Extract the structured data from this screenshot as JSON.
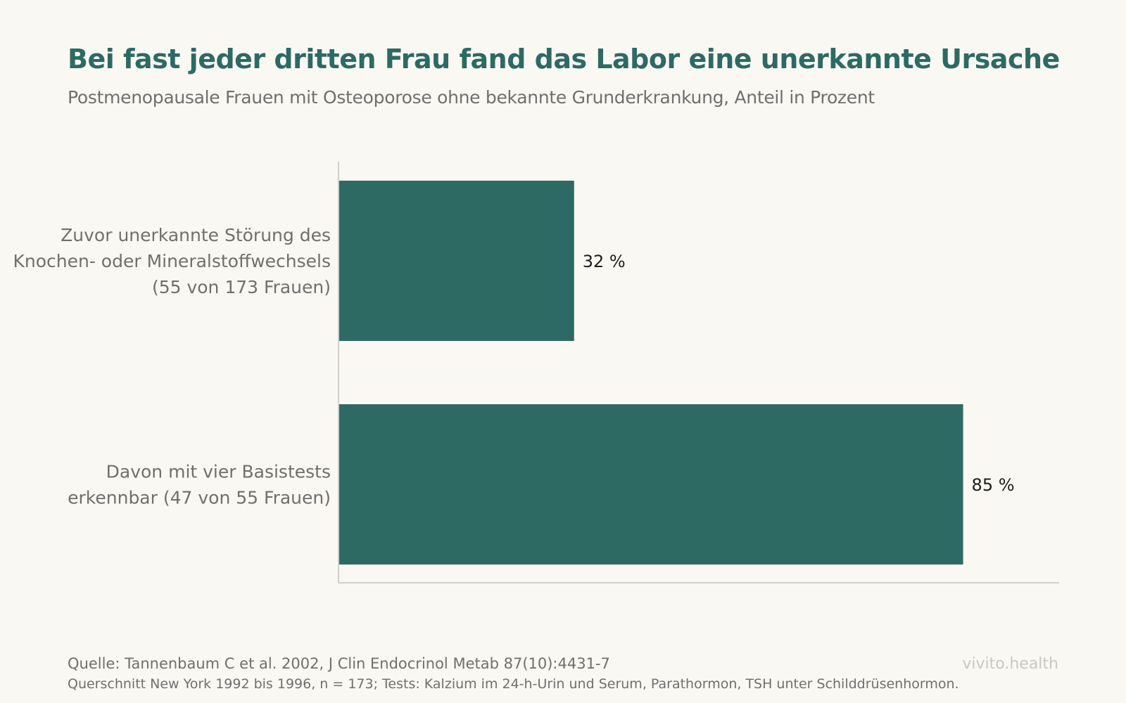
{
  "chart_data": {
    "type": "bar",
    "orientation": "horizontal",
    "title": "Bei fast jeder dritten Frau fand das Labor eine unerkannte Ursache",
    "subtitle": "Postmenopausale Frauen mit Osteoporose ohne bekannte Grunderkrankung, Anteil in Prozent",
    "categories": [
      [
        "Zuvor unerkannte Störung des",
        "Knochen- oder Mineralstoffwechsels",
        "(55 von 173 Frauen)"
      ],
      [
        "Davon mit vier Basistests",
        "erkennbar (47 von 55 Frauen)"
      ]
    ],
    "values": [
      32,
      85
    ],
    "data_labels": [
      "32 %",
      "85 %"
    ],
    "xlim": [
      0,
      100
    ],
    "grid": false,
    "legend": "none",
    "bar_color": "#2d6a64"
  },
  "footer": {
    "source": "Quelle: Tannenbaum C et al. 2002, J Clin Endocrinol Metab 87(10):4431-7",
    "note": "Querschnitt New York 1992 bis 1996, n = 173; Tests: Kalzium im 24-h-Urin und Serum, Parathormon, TSH unter Schilddrüsenhormon.",
    "brand": "vivito.health"
  }
}
